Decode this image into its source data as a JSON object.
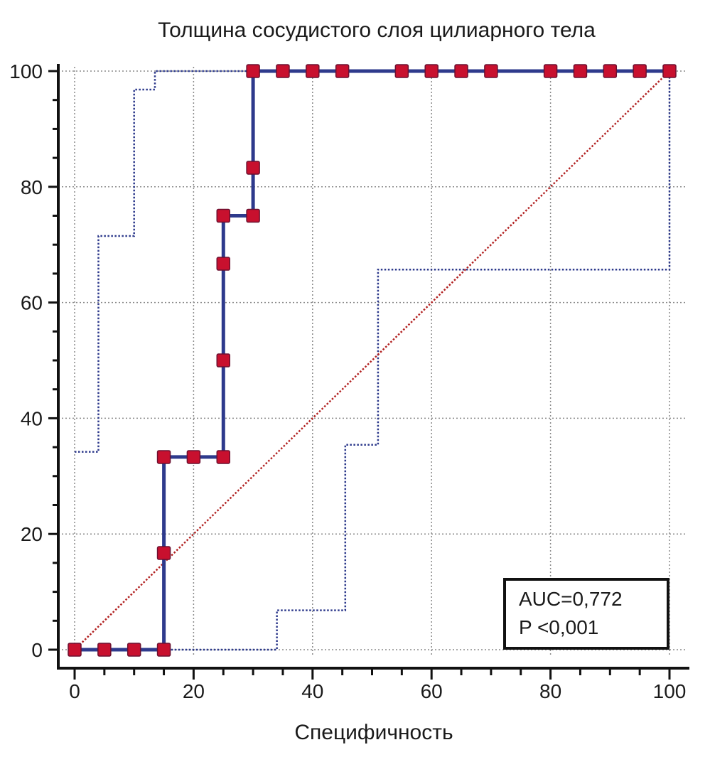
{
  "chart_data": {
    "type": "line",
    "title": "Толщина сосудистого слоя цилиарного тела",
    "xlabel": "Специфичность",
    "ylabel": "",
    "xlim": [
      0,
      100
    ],
    "ylim": [
      0,
      100
    ],
    "xticks": [
      "0",
      "20",
      "40",
      "60",
      "80",
      "100"
    ],
    "yticks": [
      "0",
      "20",
      "40",
      "60",
      "80",
      "100"
    ],
    "grid": true,
    "annotation": {
      "auc": "AUC=0,772",
      "p": "P <0,001"
    },
    "series": [
      {
        "role": "roc",
        "style": "solid",
        "markers": true,
        "line_color": "#2e3a8c",
        "marker_color": "#c8102e",
        "path": [
          [
            0,
            0
          ],
          [
            15,
            0
          ],
          [
            15,
            16.7
          ],
          [
            15,
            33.3
          ],
          [
            25,
            33.3
          ],
          [
            25,
            50
          ],
          [
            25,
            66.7
          ],
          [
            25,
            75
          ],
          [
            30,
            75
          ],
          [
            30,
            83.3
          ],
          [
            30,
            100
          ],
          [
            100,
            100
          ]
        ],
        "points": [
          [
            0,
            0
          ],
          [
            5,
            0
          ],
          [
            10,
            0
          ],
          [
            15,
            0
          ],
          [
            15,
            16.7
          ],
          [
            15,
            33.3
          ],
          [
            20,
            33.3
          ],
          [
            25,
            33.3
          ],
          [
            25,
            50
          ],
          [
            25,
            66.7
          ],
          [
            25,
            75
          ],
          [
            30,
            75
          ],
          [
            30,
            83.3
          ],
          [
            30,
            100
          ],
          [
            35,
            100
          ],
          [
            40,
            100
          ],
          [
            45,
            100
          ],
          [
            55,
            100
          ],
          [
            60,
            100
          ],
          [
            65,
            100
          ],
          [
            70,
            100
          ],
          [
            80,
            100
          ],
          [
            85,
            100
          ],
          [
            90,
            100
          ],
          [
            95,
            100
          ],
          [
            100,
            100
          ]
        ]
      },
      {
        "role": "upper-ci",
        "style": "dotted",
        "line_color": "#2e3a8c",
        "path": [
          [
            0,
            34.2
          ],
          [
            4,
            34.2
          ],
          [
            4,
            71.5
          ],
          [
            10,
            71.5
          ],
          [
            10,
            96.8
          ],
          [
            13.5,
            96.8
          ],
          [
            13.5,
            100
          ],
          [
            30,
            100
          ]
        ]
      },
      {
        "role": "lower-ci",
        "style": "dotted",
        "line_color": "#2e3a8c",
        "path": [
          [
            15,
            0
          ],
          [
            34,
            0
          ],
          [
            34,
            6.8
          ],
          [
            45.5,
            6.8
          ],
          [
            45.5,
            35.4
          ],
          [
            51,
            35.4
          ],
          [
            51,
            65.7
          ],
          [
            100,
            65.7
          ],
          [
            100,
            100
          ]
        ]
      },
      {
        "role": "diagonal",
        "style": "dotted",
        "line_color": "#b22222",
        "path": [
          [
            0,
            0
          ],
          [
            100,
            100
          ]
        ]
      }
    ]
  }
}
